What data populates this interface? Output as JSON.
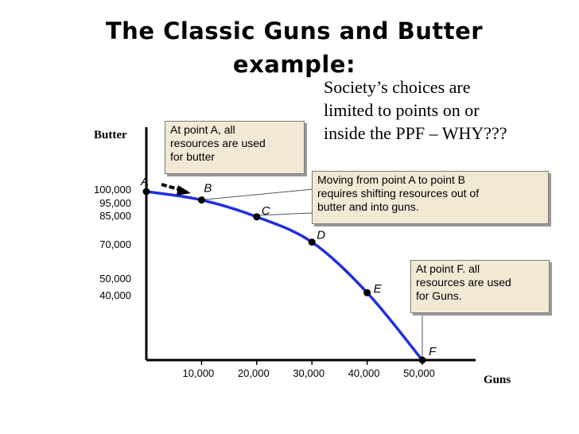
{
  "title": {
    "line1": "The Classic Guns and Butter",
    "line2": "example:"
  },
  "subtitle": {
    "line1": "Society’s choices are",
    "line2": "limited to points on or",
    "line3": "inside the PPF – WHY???"
  },
  "callouts": {
    "point_a": {
      "line1": "At point A, all",
      "line2": "resources are used",
      "line3": "for butter"
    },
    "move_a_b": {
      "line1": "Moving from point A to point B",
      "line2": "requires shifting resources out of",
      "line3": "butter and into guns."
    },
    "point_f": {
      "line1": "At point F. all",
      "line2": "resources are used",
      "line3": "for Guns."
    }
  },
  "chart_data": {
    "type": "line",
    "title": "",
    "xlabel": "Guns",
    "ylabel": "Butter",
    "xlim": [
      0,
      50000
    ],
    "ylim": [
      0,
      100000
    ],
    "x_ticks": [
      "10,000",
      "20,000",
      "30,000",
      "40,000",
      "50,000"
    ],
    "y_ticks": [
      "100,000",
      "95,000",
      "85,000",
      "70,000",
      "50,000",
      "40,000"
    ],
    "points": [
      {
        "label": "A",
        "x": 0,
        "y": 100000
      },
      {
        "label": "B",
        "x": 10000,
        "y": 95000
      },
      {
        "label": "C",
        "x": 20000,
        "y": 85000
      },
      {
        "label": "D",
        "x": 30000,
        "y": 70000
      },
      {
        "label": "E",
        "x": 40000,
        "y": 40000
      },
      {
        "label": "F",
        "x": 50000,
        "y": 0
      }
    ],
    "curve_color": "#1f2fe0",
    "grid": false
  }
}
